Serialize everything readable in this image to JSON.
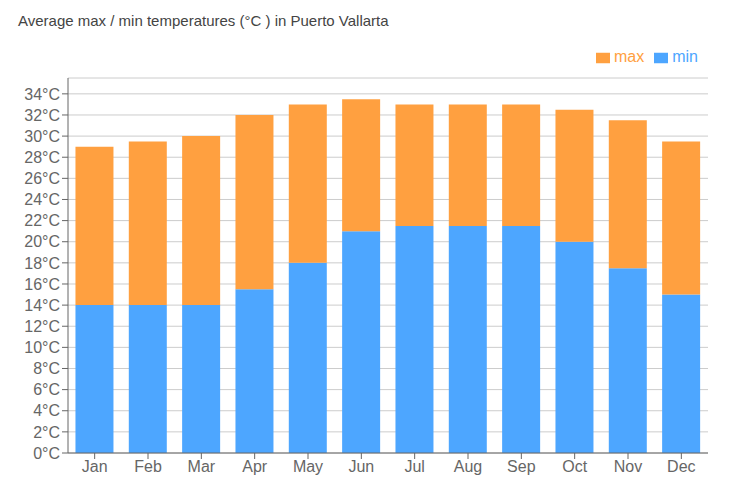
{
  "chart_data": {
    "type": "bar",
    "title": "Average max / min temperatures (°C ) in Puerto Vallarta",
    "categories": [
      "Jan",
      "Feb",
      "Mar",
      "Apr",
      "May",
      "Jun",
      "Jul",
      "Aug",
      "Sep",
      "Oct",
      "Nov",
      "Dec"
    ],
    "series": [
      {
        "name": "min",
        "color": "#4da6ff",
        "values": [
          14,
          14,
          14,
          15.5,
          18,
          21,
          21.5,
          21.5,
          21.5,
          20,
          17.5,
          15
        ]
      },
      {
        "name": "max",
        "color": "#ffa040",
        "values": [
          15,
          15.5,
          16,
          16.5,
          15,
          12.5,
          11.5,
          11.5,
          11.5,
          12.5,
          14,
          14.5
        ]
      }
    ],
    "stacked": true,
    "ylim": [
      0,
      35.5
    ],
    "yticks": [
      {
        "value": 0,
        "label": "0°C"
      },
      {
        "value": 2,
        "label": "2°C"
      },
      {
        "value": 4,
        "label": "4°C"
      },
      {
        "value": 6,
        "label": "6°C"
      },
      {
        "value": 8,
        "label": "8°C"
      },
      {
        "value": 10,
        "label": "10°C"
      },
      {
        "value": 12,
        "label": "12°C"
      },
      {
        "value": 14,
        "label": "14°C"
      },
      {
        "value": 16,
        "label": "16°C"
      },
      {
        "value": 18,
        "label": "18°C"
      },
      {
        "value": 20,
        "label": "20°C"
      },
      {
        "value": 22,
        "label": "22°C"
      },
      {
        "value": 24,
        "label": "24°C"
      },
      {
        "value": 26,
        "label": "26°C"
      },
      {
        "value": 28,
        "label": "28°C"
      },
      {
        "value": 30,
        "label": "30°C"
      },
      {
        "value": 32,
        "label": "32°C"
      },
      {
        "value": 34,
        "label": "34°C"
      }
    ],
    "grid": true,
    "legend": "upper right"
  }
}
